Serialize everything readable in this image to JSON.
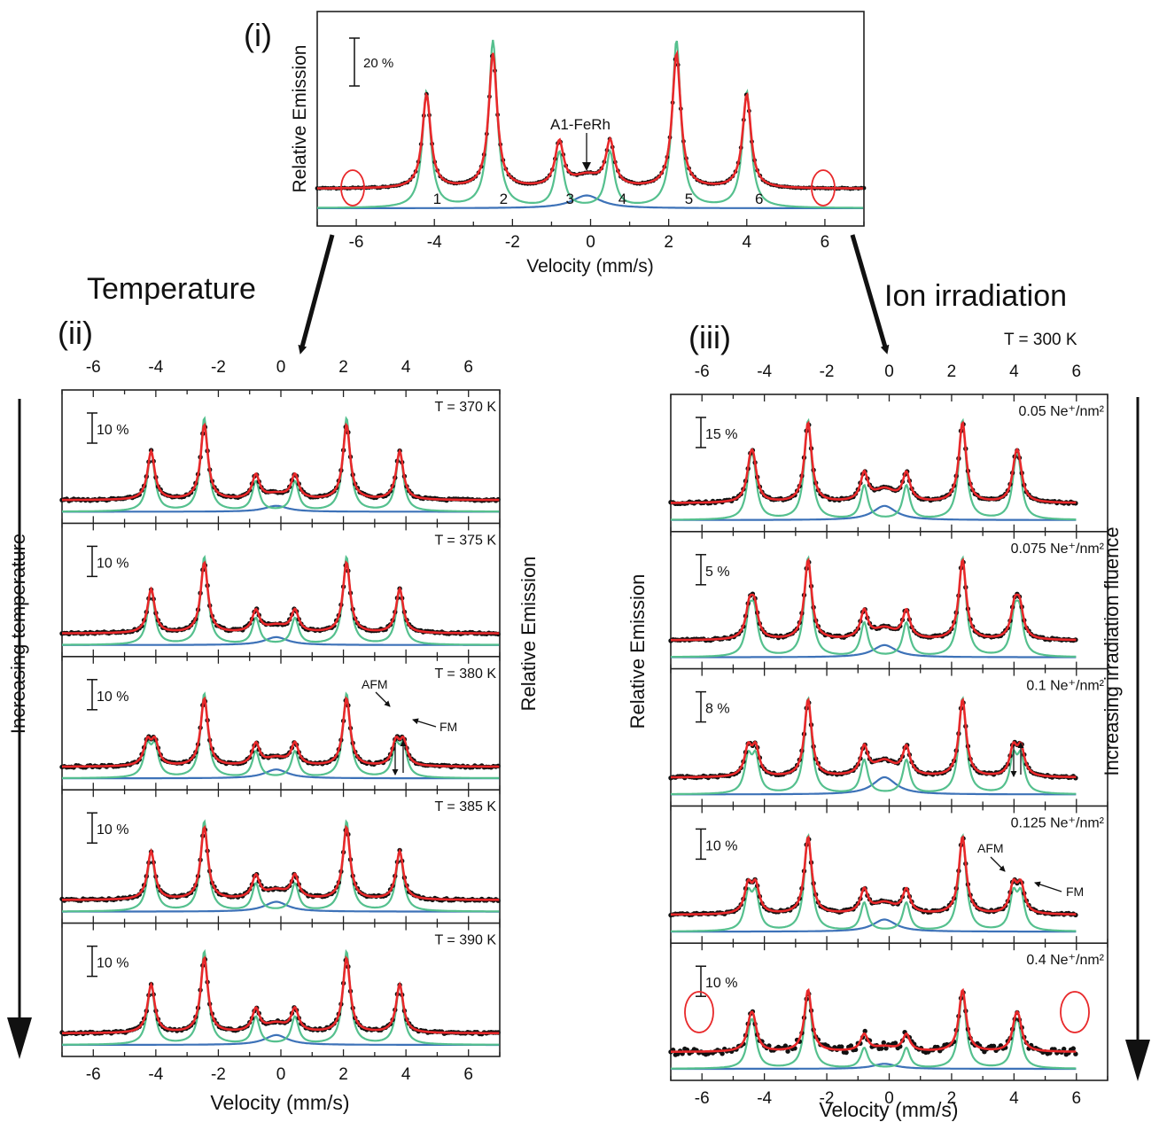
{
  "colors": {
    "data": "#111111",
    "fit": "#e8282a",
    "sextet": "#55c08e",
    "doublet": "#3d72b8",
    "frame": "#222222"
  },
  "labels": {
    "panel_i": "(i)",
    "panel_ii": "(ii)",
    "panel_iii": "(iii)",
    "temperature": "Temperature",
    "ion_irradiation": "Ion irradiation",
    "increasing_temperature": "Increasing temperature",
    "increasing_fluence": "Increasing irradiation fluence",
    "t300": "T = 300 K",
    "a1_ferh": "A1-FeRh",
    "afm": "AFM",
    "fm": "FM"
  },
  "chart_data": [
    {
      "id": "panel-i",
      "type": "line",
      "xlabel": "Velocity (mm/s)",
      "ylabel": "Relative Emission",
      "xlim": [
        -7,
        7
      ],
      "xticks": [
        -6,
        -4,
        -2,
        0,
        2,
        4,
        6
      ],
      "scale_bar": "20 %",
      "sextet_lines": [
        {
          "label": "1",
          "x": -4.2,
          "height": 0.57
        },
        {
          "label": "2",
          "x": -2.5,
          "height": 0.82
        },
        {
          "label": "3",
          "x": -0.8,
          "height": 0.27
        },
        {
          "label": "4",
          "x": 0.5,
          "height": 0.27
        },
        {
          "label": "5",
          "x": 2.2,
          "height": 0.82
        },
        {
          "label": "6",
          "x": 4.0,
          "height": 0.57
        }
      ],
      "doublet": {
        "x": -0.1,
        "height": 0.07
      },
      "series": [
        {
          "name": "data",
          "style": "points"
        },
        {
          "name": "total fit",
          "style": "line"
        },
        {
          "name": "sextet",
          "style": "line"
        },
        {
          "name": "A1-FeRh",
          "style": "line"
        }
      ]
    },
    {
      "id": "panel-ii",
      "type": "line",
      "xlabel": "Velocity (mm/s)",
      "ylabel": "Relative Emission",
      "xlim": [
        -7,
        7
      ],
      "xticks": [
        -6,
        -4,
        -2,
        0,
        2,
        4,
        6
      ],
      "sextet_positions": [
        -4.15,
        -2.45,
        -0.8,
        0.45,
        2.1,
        3.8
      ],
      "subpanels": [
        {
          "label": "T = 370 K",
          "scale_bar": "10 %",
          "heights": [
            0.55,
            0.85,
            0.27,
            0.27,
            0.85,
            0.55
          ],
          "doublet": 0.06,
          "split": 0
        },
        {
          "label": "T = 375 K",
          "scale_bar": "10 %",
          "heights": [
            0.5,
            0.8,
            0.24,
            0.24,
            0.8,
            0.5
          ],
          "doublet": 0.08,
          "split": 0
        },
        {
          "label": "T = 380 K",
          "scale_bar": "10 %",
          "heights": [
            0.48,
            0.77,
            0.24,
            0.24,
            0.77,
            0.48
          ],
          "doublet": 0.09,
          "split": 0.12
        },
        {
          "label": "T = 385 K",
          "scale_bar": "10 %",
          "heights": [
            0.55,
            0.82,
            0.25,
            0.25,
            0.82,
            0.55
          ],
          "doublet": 0.1,
          "split": 0
        },
        {
          "label": "T = 390 K",
          "scale_bar": "10 %",
          "heights": [
            0.55,
            0.85,
            0.25,
            0.25,
            0.85,
            0.55
          ],
          "doublet": 0.1,
          "split": 0
        }
      ]
    },
    {
      "id": "panel-iii",
      "type": "line",
      "xlabel": "Velocity (mm/s)",
      "ylabel": "Relative Emission",
      "xlim": [
        -7,
        7
      ],
      "xticks": [
        -6,
        -4,
        -2,
        0,
        2,
        4,
        6
      ],
      "sextet_positions": [
        -4.4,
        -2.6,
        -0.8,
        0.55,
        2.35,
        4.1
      ],
      "subpanels": [
        {
          "label": "0.05 Ne⁺/nm²",
          "scale_bar": "15 %",
          "heights": [
            0.6,
            0.88,
            0.3,
            0.3,
            0.88,
            0.6
          ],
          "doublet": 0.14,
          "split": 0.05
        },
        {
          "label": "0.075 Ne⁺/nm²",
          "scale_bar": "5 %",
          "heights": [
            0.6,
            0.88,
            0.3,
            0.3,
            0.88,
            0.6
          ],
          "doublet": 0.12,
          "split": 0.08
        },
        {
          "label": "0.1 Ne⁺/nm²",
          "scale_bar": "8 %",
          "heights": [
            0.55,
            0.85,
            0.3,
            0.3,
            0.85,
            0.55
          ],
          "doublet": 0.17,
          "split": 0.12
        },
        {
          "label": "0.125 Ne⁺/nm²",
          "scale_bar": "10 %",
          "heights": [
            0.55,
            0.85,
            0.25,
            0.25,
            0.85,
            0.55
          ],
          "doublet": 0.12,
          "split": 0.12
        },
        {
          "label": "0.4 Ne⁺/nm²",
          "scale_bar": "10 %",
          "heights": [
            0.45,
            0.68,
            0.18,
            0.18,
            0.68,
            0.45
          ],
          "doublet": 0.05,
          "split": 0.05
        }
      ]
    }
  ]
}
